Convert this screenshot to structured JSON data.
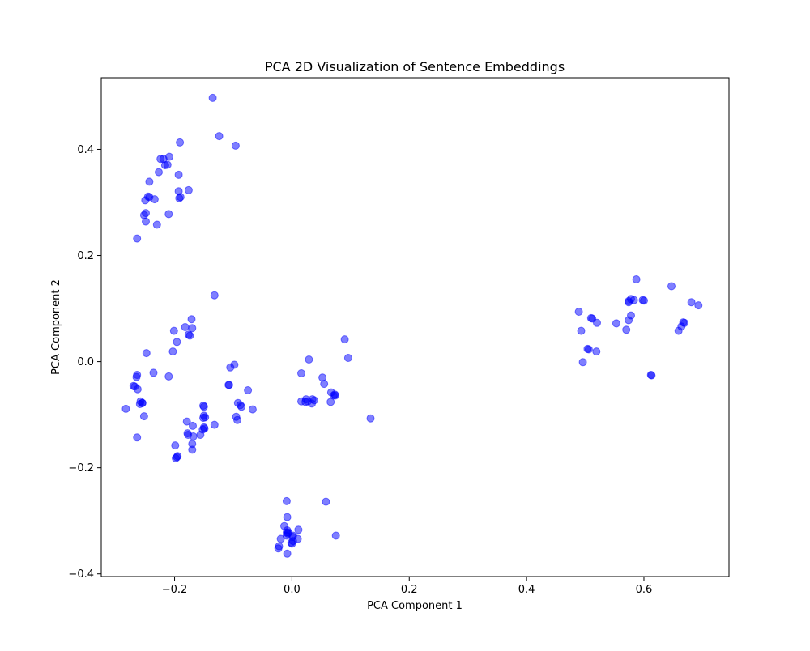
{
  "chart_data": {
    "type": "scatter",
    "title": "PCA 2D Visualization of Sentence Embeddings",
    "xlabel": "PCA Component 1",
    "ylabel": "PCA Component 2",
    "xlim": [
      -0.325,
      0.745
    ],
    "ylim": [
      -0.405,
      0.535
    ],
    "xticks": [
      -0.2,
      0.0,
      0.2,
      0.4,
      0.6
    ],
    "xtick_labels": [
      "−0.2",
      "0.0",
      "0.2",
      "0.4",
      "0.6"
    ],
    "yticks": [
      -0.4,
      -0.2,
      0.0,
      0.2,
      0.4
    ],
    "ytick_labels": [
      "−0.4",
      "−0.2",
      "0.0",
      "0.2",
      "0.4"
    ],
    "grid": false,
    "marker_color": "#0000ff",
    "marker_alpha": 0.5,
    "series": [
      {
        "points": [
          [
            -0.135,
            0.497
          ],
          [
            -0.124,
            0.425
          ],
          [
            -0.096,
            0.407
          ],
          [
            -0.191,
            0.413
          ],
          [
            -0.209,
            0.386
          ],
          [
            -0.224,
            0.382
          ],
          [
            -0.219,
            0.382
          ],
          [
            -0.212,
            0.371
          ],
          [
            -0.216,
            0.37
          ],
          [
            -0.227,
            0.357
          ],
          [
            -0.193,
            0.352
          ],
          [
            -0.243,
            0.339
          ],
          [
            -0.176,
            0.323
          ],
          [
            -0.193,
            0.321
          ],
          [
            -0.245,
            0.311
          ],
          [
            -0.243,
            0.31
          ],
          [
            -0.19,
            0.31
          ],
          [
            -0.192,
            0.308
          ],
          [
            -0.234,
            0.306
          ],
          [
            -0.25,
            0.304
          ],
          [
            -0.21,
            0.278
          ],
          [
            -0.249,
            0.28
          ],
          [
            -0.252,
            0.276
          ],
          [
            -0.249,
            0.264
          ],
          [
            -0.23,
            0.258
          ],
          [
            -0.264,
            0.232
          ],
          [
            -0.132,
            0.125
          ],
          [
            -0.171,
            0.08
          ],
          [
            -0.182,
            0.065
          ],
          [
            -0.17,
            0.063
          ],
          [
            -0.201,
            0.058
          ],
          [
            -0.176,
            0.051
          ],
          [
            -0.174,
            0.049
          ],
          [
            -0.196,
            0.037
          ],
          [
            -0.203,
            0.019
          ],
          [
            -0.248,
            0.016
          ],
          [
            -0.098,
            -0.006
          ],
          [
            -0.105,
            -0.011
          ],
          [
            -0.236,
            -0.021
          ],
          [
            -0.264,
            -0.025
          ],
          [
            -0.265,
            -0.029
          ],
          [
            -0.21,
            -0.028
          ],
          [
            -0.107,
            -0.044
          ],
          [
            -0.108,
            -0.044
          ],
          [
            -0.27,
            -0.046
          ],
          [
            -0.268,
            -0.047
          ],
          [
            -0.263,
            -0.052
          ],
          [
            -0.075,
            -0.054
          ],
          [
            -0.258,
            -0.075
          ],
          [
            -0.255,
            -0.078
          ],
          [
            -0.259,
            -0.08
          ],
          [
            -0.255,
            -0.078
          ],
          [
            -0.092,
            -0.078
          ],
          [
            -0.088,
            -0.082
          ],
          [
            -0.086,
            -0.085
          ],
          [
            -0.151,
            -0.083
          ],
          [
            -0.15,
            -0.085
          ],
          [
            -0.283,
            -0.089
          ],
          [
            -0.067,
            -0.09
          ],
          [
            -0.15,
            -0.102
          ],
          [
            -0.148,
            -0.105
          ],
          [
            -0.151,
            -0.106
          ],
          [
            -0.252,
            -0.103
          ],
          [
            -0.095,
            -0.104
          ],
          [
            -0.093,
            -0.11
          ],
          [
            -0.179,
            -0.113
          ],
          [
            -0.132,
            -0.119
          ],
          [
            -0.169,
            -0.121
          ],
          [
            -0.15,
            -0.124
          ],
          [
            -0.149,
            -0.126
          ],
          [
            -0.152,
            -0.128
          ],
          [
            -0.178,
            -0.135
          ],
          [
            -0.177,
            -0.138
          ],
          [
            -0.156,
            -0.138
          ],
          [
            -0.168,
            -0.141
          ],
          [
            -0.264,
            -0.143
          ],
          [
            -0.17,
            -0.155
          ],
          [
            -0.199,
            -0.158
          ],
          [
            -0.17,
            -0.166
          ],
          [
            -0.195,
            -0.178
          ],
          [
            -0.198,
            -0.182
          ],
          [
            -0.196,
            -0.18
          ],
          [
            0.09,
            0.042
          ],
          [
            0.096,
            0.007
          ],
          [
            0.029,
            0.004
          ],
          [
            0.016,
            -0.022
          ],
          [
            0.052,
            -0.03
          ],
          [
            0.055,
            -0.042
          ],
          [
            0.067,
            -0.058
          ],
          [
            0.073,
            -0.062
          ],
          [
            0.074,
            -0.064
          ],
          [
            0.071,
            -0.064
          ],
          [
            0.035,
            -0.071
          ],
          [
            0.024,
            -0.071
          ],
          [
            0.038,
            -0.073
          ],
          [
            0.016,
            -0.075
          ],
          [
            0.027,
            -0.075
          ],
          [
            0.023,
            -0.076
          ],
          [
            0.066,
            -0.076
          ],
          [
            0.034,
            -0.079
          ],
          [
            0.134,
            -0.107
          ],
          [
            -0.009,
            -0.263
          ],
          [
            0.058,
            -0.264
          ],
          [
            -0.008,
            -0.293
          ],
          [
            -0.013,
            -0.31
          ],
          [
            0.011,
            -0.317
          ],
          [
            -0.008,
            -0.318
          ],
          [
            -0.009,
            -0.322
          ],
          [
            -0.006,
            -0.322
          ],
          [
            -0.007,
            -0.324
          ],
          [
            -0.009,
            -0.328
          ],
          [
            0.002,
            -0.328
          ],
          [
            0.001,
            -0.33
          ],
          [
            0.075,
            -0.328
          ],
          [
            -0.019,
            -0.334
          ],
          [
            0.01,
            -0.334
          ],
          [
            0.002,
            -0.338
          ],
          [
            -0.001,
            -0.341
          ],
          [
            0.0,
            -0.343
          ],
          [
            -0.022,
            -0.348
          ],
          [
            -0.023,
            -0.352
          ],
          [
            -0.008,
            -0.362
          ],
          [
            0.587,
            0.155
          ],
          [
            0.647,
            0.142
          ],
          [
            0.578,
            0.118
          ],
          [
            0.583,
            0.116
          ],
          [
            0.574,
            0.112
          ],
          [
            0.574,
            0.114
          ],
          [
            0.6,
            0.115
          ],
          [
            0.598,
            0.116
          ],
          [
            0.681,
            0.112
          ],
          [
            0.693,
            0.106
          ],
          [
            0.489,
            0.094
          ],
          [
            0.578,
            0.087
          ],
          [
            0.51,
            0.082
          ],
          [
            0.512,
            0.081
          ],
          [
            0.574,
            0.078
          ],
          [
            0.52,
            0.073
          ],
          [
            0.553,
            0.072
          ],
          [
            0.667,
            0.074
          ],
          [
            0.669,
            0.073
          ],
          [
            0.664,
            0.066
          ],
          [
            0.659,
            0.058
          ],
          [
            0.57,
            0.06
          ],
          [
            0.493,
            0.058
          ],
          [
            0.504,
            0.024
          ],
          [
            0.506,
            0.023
          ],
          [
            0.519,
            0.019
          ],
          [
            0.496,
            -0.001
          ],
          [
            0.612,
            -0.025
          ],
          [
            0.613,
            -0.026
          ]
        ]
      }
    ]
  }
}
